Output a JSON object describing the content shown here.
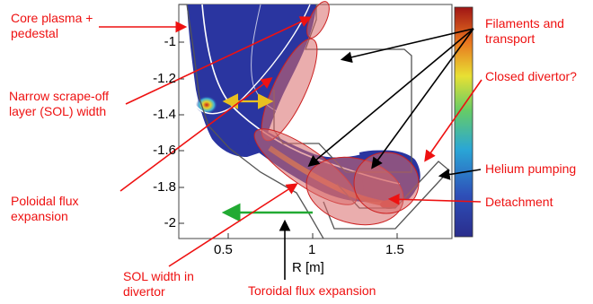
{
  "diagram": {
    "annotations": {
      "core_plasma": "Core plasma +",
      "core_plasma_2": "pedestal",
      "narrow_sol": "Narrow scrape-off",
      "narrow_sol_2": "layer (SOL) width",
      "poloidal": "Poloidal flux",
      "poloidal_2": "expansion",
      "sol_divertor": "SOL width in",
      "sol_divertor_2": "divertor",
      "toroidal": "Toroidal flux expansion",
      "filaments": "Filaments and",
      "filaments_2": "transport",
      "closed_divertor": "Closed divertor?",
      "helium": "Helium pumping",
      "detachment": "Detachment"
    },
    "axes": {
      "y_ticks": [
        "-1",
        "-1.2",
        "-1.4",
        "-1.6",
        "-1.8",
        "-2"
      ],
      "x_ticks": [
        "0.5",
        "1",
        "1.5"
      ],
      "x_label": "R [m]"
    },
    "colors": {
      "annotation": "#ee1111",
      "yellow_arrow": "#e8c020",
      "green_arrow": "#22aa33",
      "plasma_blue": "#2a35a0",
      "highlight": "#d86a6a"
    }
  }
}
